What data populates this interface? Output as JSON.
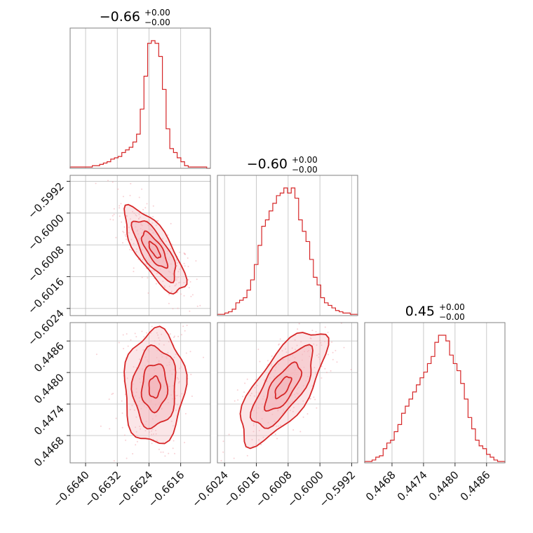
{
  "colors": {
    "accent": "#d62728",
    "fill": "#f4b8bd",
    "grid": "#c4c4c4",
    "frame": "#808080"
  },
  "titles": [
    {
      "main": "−0.66",
      "plus": "+0.00",
      "minus": "−0.00"
    },
    {
      "main": "−0.60",
      "plus": "+0.00",
      "minus": "−0.00"
    },
    {
      "main": "0.45",
      "plus": "+0.00",
      "minus": "−0.00"
    }
  ],
  "chart_data": {
    "type": "corner",
    "parameters": [
      {
        "ticks": [
          -0.664,
          -0.6632,
          -0.6624,
          -0.6616
        ],
        "tick_labels": [
          "−0.6640",
          "−0.6632",
          "−0.6624",
          "−0.6616"
        ],
        "range": [
          -0.66439,
          -0.66085
        ]
      },
      {
        "ticks": [
          -0.6024,
          -0.6016,
          -0.6008,
          -0.6,
          -0.5992
        ],
        "tick_labels": [
          "−0.6024",
          "−0.6016",
          "−0.6008",
          "−0.6000",
          "−0.5992"
        ],
        "range": [
          -0.60258,
          -0.59905
        ]
      },
      {
        "ticks": [
          0.4468,
          0.4474,
          0.448,
          0.4486
        ],
        "tick_labels": [
          "0.4468",
          "0.4474",
          "0.4480",
          "0.4486"
        ],
        "range": [
          0.44628,
          0.44895
        ]
      }
    ],
    "histograms": [
      {
        "values": [
          1,
          1,
          1,
          1,
          1,
          1,
          2,
          2,
          3,
          4,
          5,
          7,
          8,
          9,
          12,
          14,
          16,
          20,
          26,
          45,
          70,
          95,
          97,
          95,
          85,
          60,
          30,
          15,
          12,
          8,
          5,
          2,
          1,
          1,
          1,
          1,
          1,
          0
        ]
      },
      {
        "values": [
          1,
          1,
          2,
          3,
          5,
          10,
          12,
          14,
          20,
          28,
          40,
          55,
          70,
          75,
          82,
          88,
          94,
          96,
          100,
          96,
          100,
          92,
          75,
          66,
          58,
          44,
          30,
          24,
          14,
          10,
          8,
          6,
          4,
          3,
          2,
          2,
          1,
          1
        ]
      },
      {
        "values": [
          1,
          1,
          2,
          4,
          5,
          10,
          14,
          16,
          22,
          27,
          35,
          40,
          45,
          50,
          55,
          60,
          64,
          70,
          75,
          85,
          90,
          90,
          86,
          76,
          70,
          65,
          56,
          45,
          32,
          24,
          16,
          12,
          10,
          6,
          4,
          2,
          1,
          1
        ]
      }
    ],
    "correlations": {
      "p1_vs_p0": -0.75,
      "p2_vs_p0": 0.05,
      "p2_vs_p1": 0.7
    }
  }
}
